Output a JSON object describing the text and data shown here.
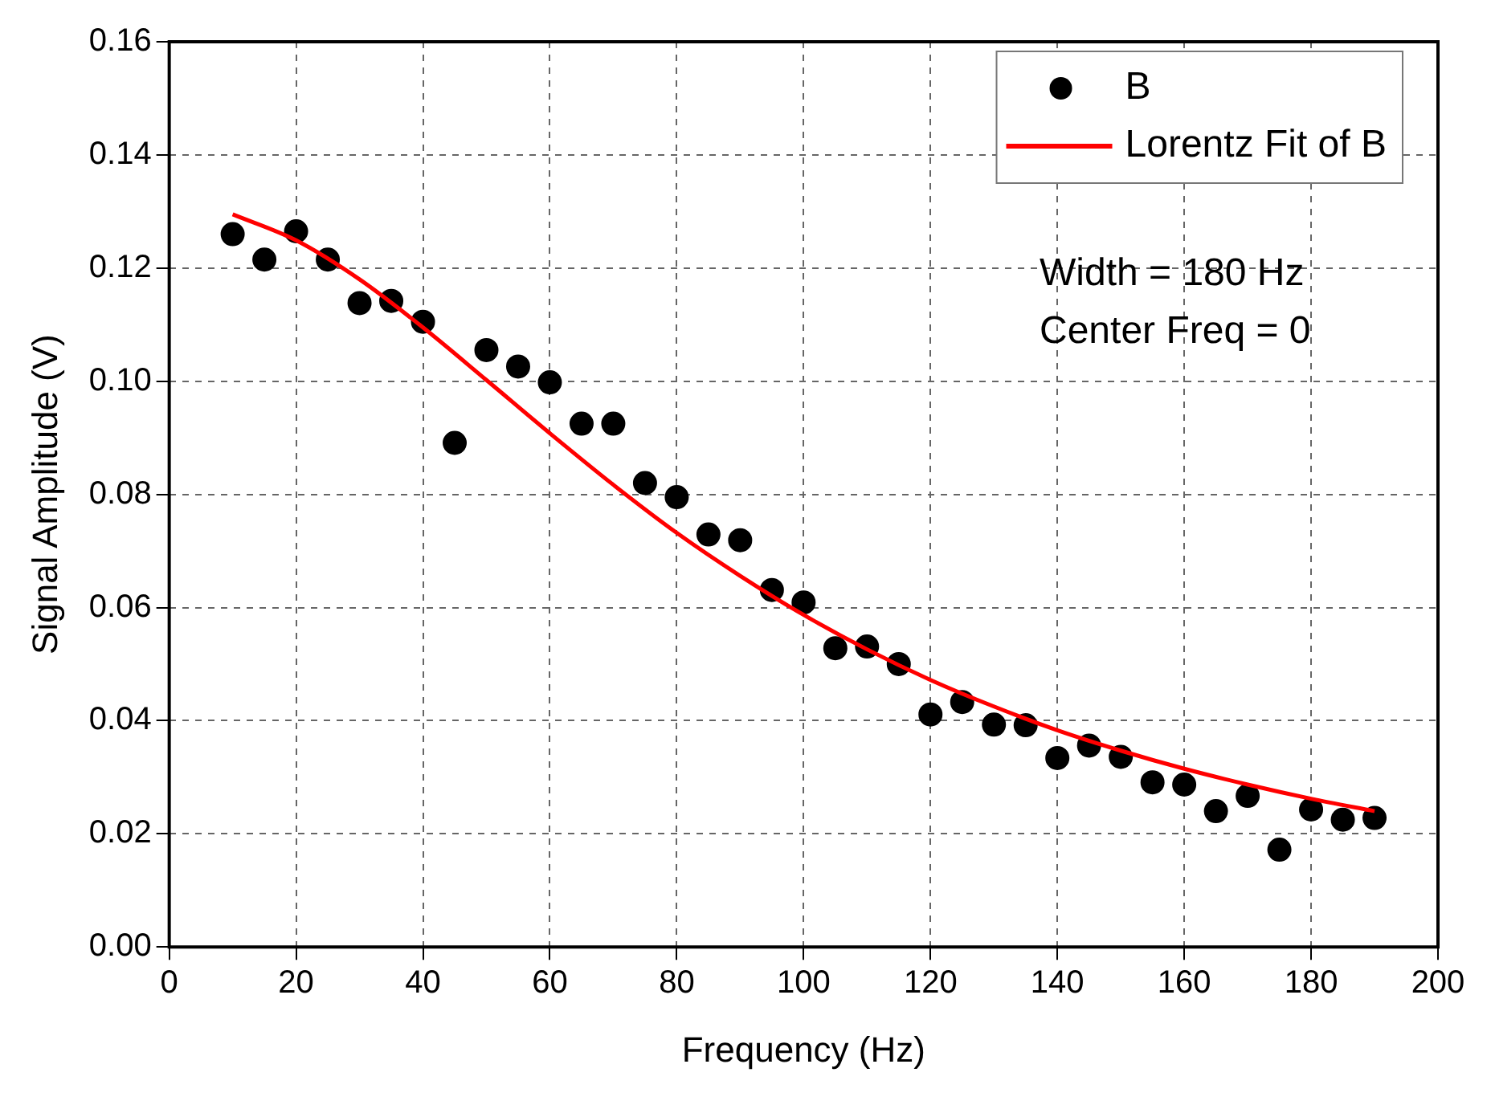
{
  "chart_data": {
    "type": "scatter",
    "xlabel": "Frequency (Hz)",
    "ylabel": "Signal Amplitude (V)",
    "xlim": [
      0,
      200
    ],
    "xticks": [
      0,
      20,
      40,
      60,
      80,
      100,
      120,
      140,
      160,
      180,
      200
    ],
    "ylim": [
      0,
      0.16
    ],
    "yticks": [
      {
        "value": 0,
        "label": "0.00"
      },
      {
        "value": 0.02,
        "label": "0.02"
      },
      {
        "value": 0.04,
        "label": "0.04"
      },
      {
        "value": 0.06,
        "label": "0.06"
      },
      {
        "value": 0.08,
        "label": "0.08"
      },
      {
        "value": 0.1,
        "label": "0.10"
      },
      {
        "value": 0.12,
        "label": "0.12"
      },
      {
        "value": 0.14,
        "label": "0.14"
      },
      {
        "value": 0.16,
        "label": "0.16"
      }
    ],
    "grid": true,
    "legend": "top right",
    "annotations": [
      "Width = 180 Hz",
      "Center Freq = 0"
    ],
    "series": [
      {
        "name": "B",
        "marker": "circle",
        "color": "#000000",
        "x": [
          10,
          15,
          20,
          25,
          30,
          35,
          40,
          45,
          50,
          55,
          60,
          65,
          70,
          75,
          80,
          85,
          90,
          95,
          100,
          105,
          110,
          115,
          120,
          125,
          130,
          135,
          140,
          145,
          150,
          155,
          160,
          165,
          170,
          175,
          180,
          185,
          190
        ],
        "values": [
          0.126,
          0.1215,
          0.1265,
          0.1215,
          0.1138,
          0.1142,
          0.1105,
          0.0891,
          0.1055,
          0.1026,
          0.0998,
          0.0925,
          0.0925,
          0.082,
          0.0795,
          0.0729,
          0.0719,
          0.0631,
          0.0609,
          0.0528,
          0.0531,
          0.05,
          0.0411,
          0.0433,
          0.0393,
          0.0392,
          0.0334,
          0.0356,
          0.0336,
          0.0291,
          0.0287,
          0.024,
          0.0267,
          0.0172,
          0.0243,
          0.0225,
          0.0228
        ]
      },
      {
        "name": "Lorentz Fit of B",
        "type": "line",
        "marker": "none",
        "color": "#ff0000",
        "x": [
          10,
          20,
          30,
          40,
          50,
          60,
          70,
          80,
          90,
          100,
          110,
          120,
          130,
          140,
          150,
          160,
          170,
          180,
          190
        ],
        "values": [
          0.1295,
          0.1249,
          0.118,
          0.1095,
          0.1002,
          0.0908,
          0.0817,
          0.0732,
          0.0656,
          0.0587,
          0.0526,
          0.0472,
          0.0425,
          0.0383,
          0.0347,
          0.0315,
          0.0287,
          0.0262,
          0.024
        ]
      }
    ]
  }
}
